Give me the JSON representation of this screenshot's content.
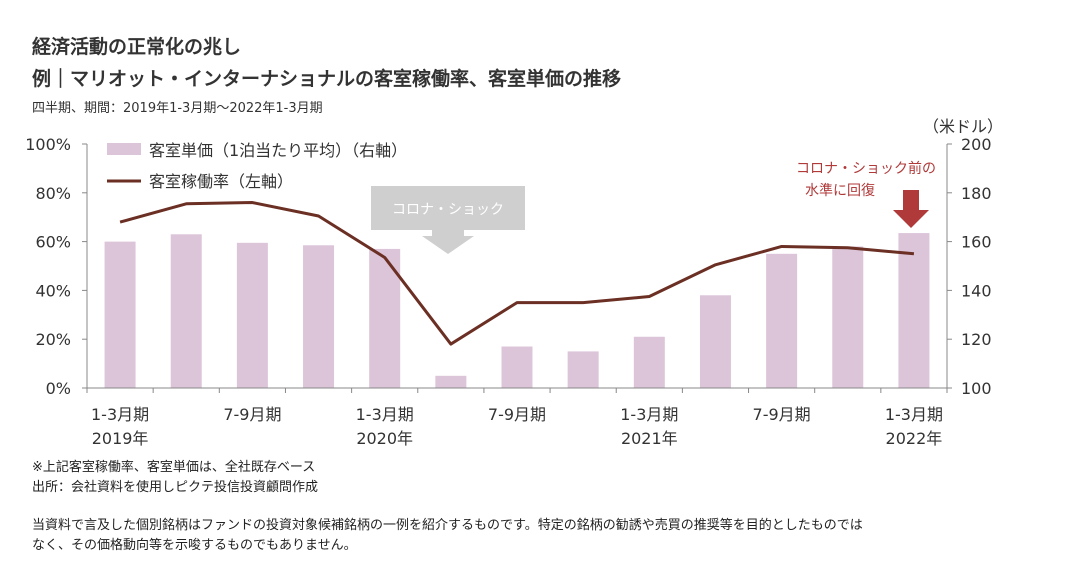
{
  "header": {
    "title": "経済活動の正常化の兆し",
    "subtitle": "例｜マリオット・インターナショナルの客室稼働率、客室単価の推移",
    "period": "四半期、期間：2019年1-3月期～2022年1-3月期"
  },
  "notes": {
    "basis": "※上記客室稼働率、客室単価は、全社既存ベース",
    "source": "出所：会社資料を使用しピクテ投信投資顧問作成",
    "disclaimer_line1": "当資料で言及した個別銘柄はファンドの投資対象候補銘柄の一例を紹介するものです。特定の銘柄の勧誘や売買の推奨等を目的としたものでは",
    "disclaimer_line2": "なく、その価格動向等を示唆するものでもありません。"
  },
  "chart_data": {
    "type": "bar",
    "categories": [
      "2019Q1",
      "2019Q2",
      "2019Q3",
      "2019Q4",
      "2020Q1",
      "2020Q2",
      "2020Q3",
      "2020Q4",
      "2021Q1",
      "2021Q2",
      "2021Q3",
      "2021Q4",
      "2022Q1"
    ],
    "x_tick_labels": [
      "1-3月期",
      "7-9月期",
      "1-3月期",
      "7-9月期",
      "1-3月期",
      "7-9月期",
      "1-3月期"
    ],
    "x_year_labels": [
      "2019年",
      "2020年",
      "2021年",
      "2022年"
    ],
    "series": [
      {
        "name": "客室単価（1泊当たり平均）（右軸）",
        "type": "bar",
        "axis": "right",
        "color": "#dcc5d9",
        "values": [
          160,
          163,
          159.5,
          158.5,
          157,
          105,
          117,
          115,
          121,
          138,
          155,
          158,
          163.5
        ]
      },
      {
        "name": "客室稼働率（左軸）",
        "type": "line",
        "axis": "left",
        "color": "#6b2f24",
        "values": [
          68,
          75.5,
          76,
          70.5,
          53.5,
          18,
          35,
          35,
          37.5,
          50.5,
          58,
          57.5,
          55
        ]
      }
    ],
    "left_axis": {
      "ylim": [
        0,
        100
      ],
      "ticks": [
        "0%",
        "20%",
        "40%",
        "60%",
        "80%",
        "100%"
      ]
    },
    "right_axis": {
      "ylim": [
        100,
        200
      ],
      "ticks": [
        "100",
        "120",
        "140",
        "160",
        "180",
        "200"
      ],
      "unit": "（米ドル）"
    },
    "annotations": {
      "corona_shock": "コロナ・ショック",
      "pre_covid_line1": "コロナ・ショック前の",
      "pre_covid_line2": "水準に回復"
    },
    "colors": {
      "annotation_gray": "#cfcfcf",
      "annotation_red": "#b03a3a"
    },
    "legend": "top-left",
    "grid": false
  }
}
